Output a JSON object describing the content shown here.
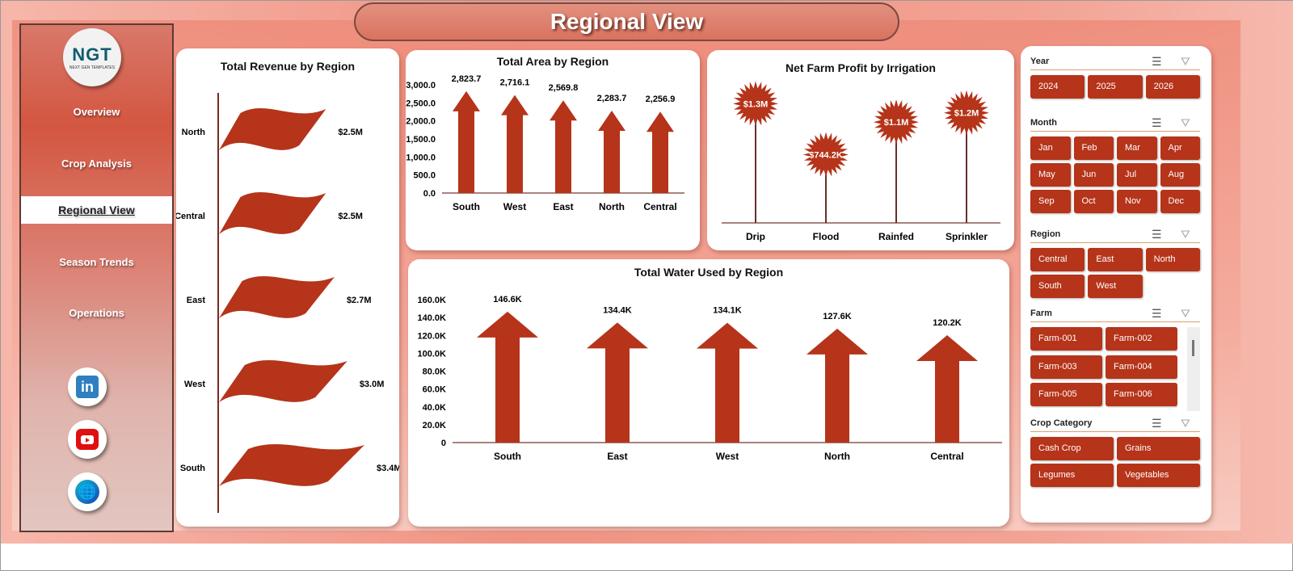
{
  "title": "Regional View",
  "logo": {
    "text": "NGT",
    "subtext": "NEXT GEN TEMPLATES"
  },
  "nav": [
    {
      "label": "Overview"
    },
    {
      "label": "Crop Analysis"
    },
    {
      "label": "Regional View",
      "active": true
    },
    {
      "label": "Season Trends"
    },
    {
      "label": "Operations"
    }
  ],
  "social": [
    "linkedin-icon",
    "youtube-icon",
    "globe-icon"
  ],
  "colors": {
    "accent": "#b5341a",
    "bg": "#f09383"
  },
  "chart_data": [
    {
      "type": "bar",
      "orientation": "horizontal",
      "title": "Total Revenue  by Region",
      "categories": [
        "North",
        "Central",
        "East",
        "West",
        "South"
      ],
      "values": [
        2.5,
        2.5,
        2.7,
        3.0,
        3.4
      ],
      "data_labels": [
        "$2.5M",
        "$2.5M",
        "$2.7M",
        "$3.0M",
        "$3.4M"
      ],
      "unit": "$M"
    },
    {
      "type": "bar",
      "title": "Total Area by Region",
      "categories": [
        "South",
        "West",
        "East",
        "North",
        "Central"
      ],
      "values": [
        2823.7,
        2716.1,
        2569.8,
        2283.7,
        2256.9
      ],
      "data_labels": [
        "2,823.7",
        "2,716.1",
        "2,569.8",
        "2,283.7",
        "2,256.9"
      ],
      "ylim": [
        0,
        3000
      ],
      "yticks": [
        "0.0",
        "500.0",
        "1,000.0",
        "1,500.0",
        "2,000.0",
        "2,500.0",
        "3,000.0"
      ]
    },
    {
      "type": "lollipop",
      "title": "Net Farm Profit by Irrigation",
      "categories": [
        "Drip",
        "Flood",
        "Rainfed",
        "Sprinkler"
      ],
      "values": [
        1.3,
        0.7442,
        1.1,
        1.2
      ],
      "data_labels": [
        "$1.3M",
        "$744.2K",
        "$1.1M",
        "$1.2M"
      ],
      "unit": "$M"
    },
    {
      "type": "bar",
      "title": "Total Water Used by Region",
      "categories": [
        "South",
        "East",
        "West",
        "North",
        "Central"
      ],
      "values": [
        146.6,
        134.4,
        134.1,
        127.6,
        120.2
      ],
      "data_labels": [
        "146.6K",
        "134.4K",
        "134.1K",
        "127.6K",
        "120.2K"
      ],
      "ylim": [
        0,
        160
      ],
      "yticks": [
        "0",
        "20.0K",
        "40.0K",
        "60.0K",
        "80.0K",
        "100.0K",
        "120.0K",
        "140.0K",
        "160.0K"
      ]
    }
  ],
  "slicers": [
    {
      "label": "Year",
      "items": [
        "2024",
        "2025",
        "2026"
      ],
      "cols": 3
    },
    {
      "label": "Month",
      "items": [
        "Jan",
        "Feb",
        "Mar",
        "Apr",
        "May",
        "Jun",
        "Jul",
        "Aug",
        "Sep",
        "Oct",
        "Nov",
        "Dec"
      ],
      "cols": 4
    },
    {
      "label": "Region",
      "items": [
        "Central",
        "East",
        "North",
        "South",
        "West"
      ],
      "cols": 3
    },
    {
      "label": "Farm",
      "items": [
        "Farm-001",
        "Farm-002",
        "Farm-003",
        "Farm-004",
        "Farm-005",
        "Farm-006"
      ],
      "cols": 2
    },
    {
      "label": "Crop Category",
      "items": [
        "Cash Crop",
        "Grains",
        "Legumes",
        "Vegetables"
      ],
      "cols": 2
    }
  ]
}
